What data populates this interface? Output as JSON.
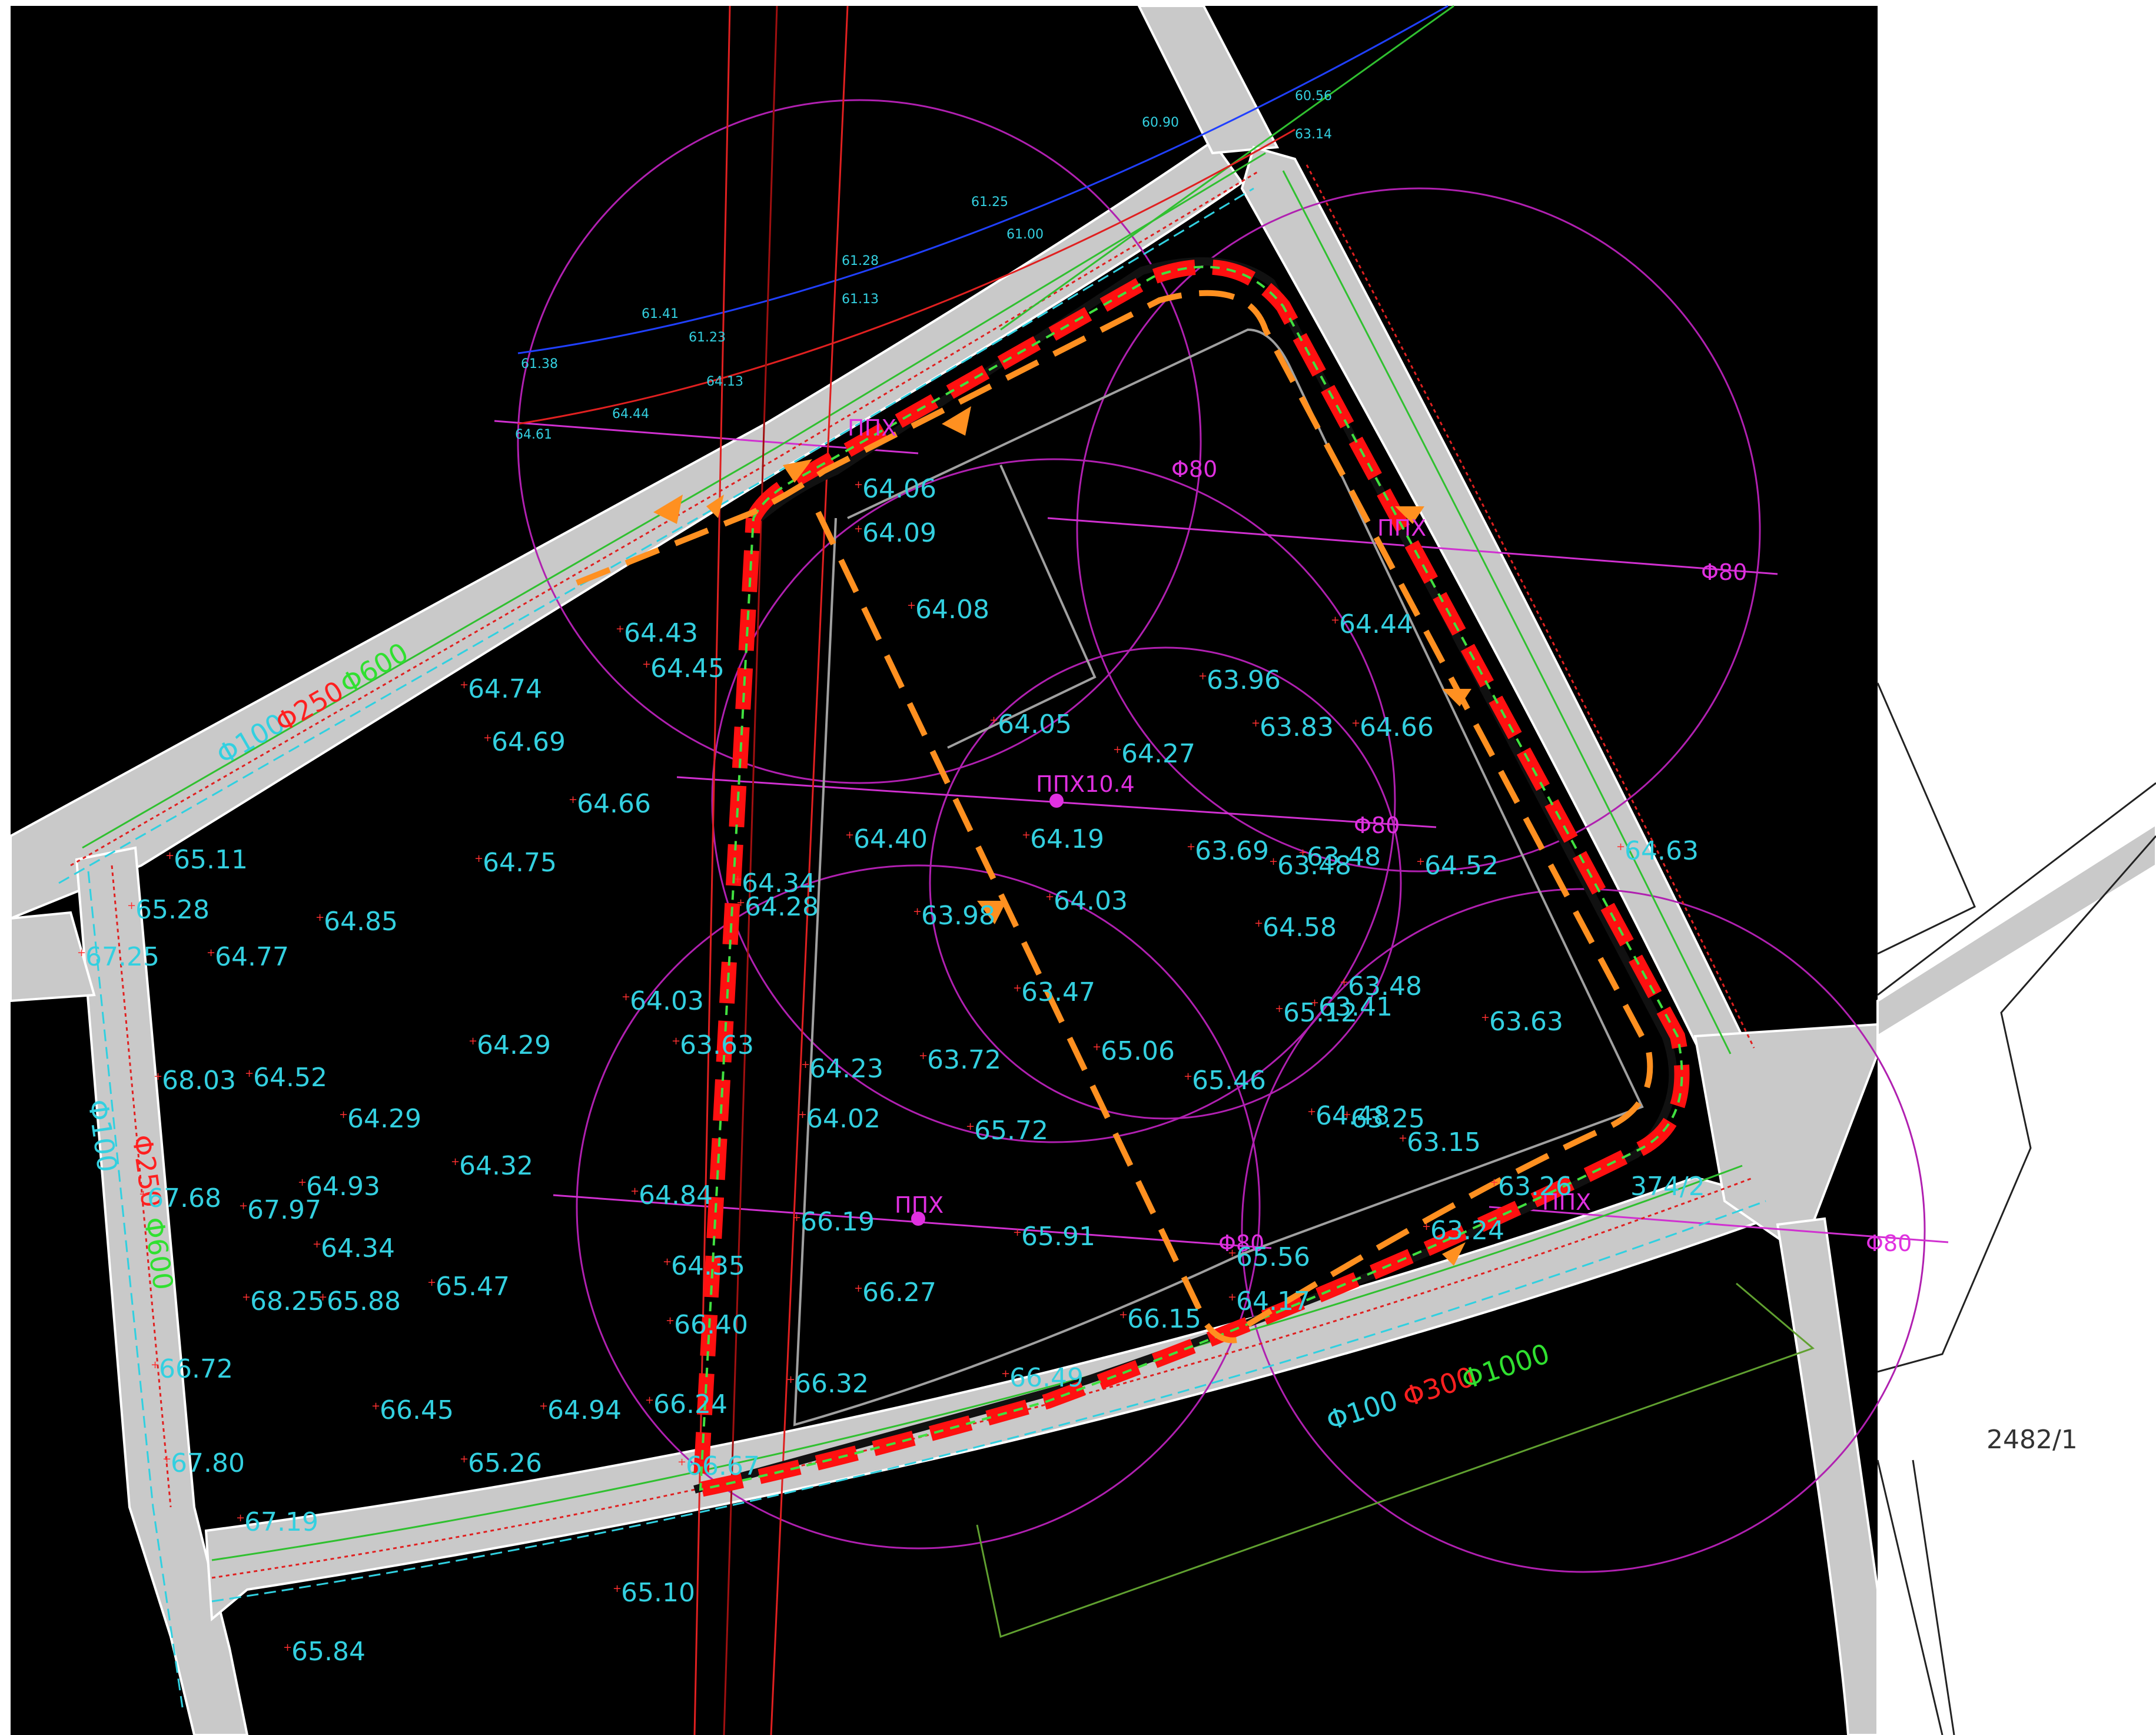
{
  "plan": {
    "parcel_labels": [
      "2482/1",
      "374/2"
    ],
    "pipe_labels": {
      "north_road": [
        "Φ100",
        "Φ250",
        "Φ600"
      ],
      "west_road": [
        "Φ100",
        "Φ250",
        "Φ600"
      ],
      "south_road": [
        "Φ100",
        "Φ300",
        "Φ1000"
      ]
    },
    "hydrants": {
      "symbol_label": "ППХ",
      "circle_radius_label": "Φ80",
      "center_label": "ППХ10.4"
    },
    "elevations": {
      "road_north": [
        "60.56",
        "60.90",
        "63.14",
        "61.25",
        "61.00",
        "61.28",
        "61.13",
        "61.41",
        "61.23",
        "61.38",
        "64.13",
        "64.44",
        "64.61"
      ],
      "site": [
        "64.06",
        "64.09",
        "64.08",
        "64.43",
        "64.45",
        "64.74",
        "64.69",
        "64.66",
        "64.75",
        "64.85",
        "65.11",
        "65.28",
        "64.77",
        "64.40",
        "64.19",
        "64.27",
        "64.05",
        "63.96",
        "63.83",
        "64.66",
        "64.44",
        "64.52",
        "64.58",
        "63.69",
        "63.48",
        "63.48",
        "64.34",
        "64.28",
        "63.98",
        "64.03",
        "63.47",
        "64.03",
        "63.63",
        "64.23",
        "63.72",
        "65.06",
        "65.12",
        "63.41",
        "63.48",
        "63.63",
        "65.46",
        "64.29",
        "64.52",
        "64.29",
        "68.03",
        "64.02",
        "65.72",
        "64.48",
        "63.25",
        "63.15",
        "64.32",
        "64.93",
        "67.97",
        "64.84",
        "66.19",
        "65.91",
        "65.56",
        "63.26",
        "63.24",
        "64.34",
        "65.47",
        "65.88",
        "68.25",
        "64.35",
        "66.27",
        "64.17",
        "66.15",
        "66.40",
        "66.32",
        "66.49",
        "64.94",
        "66.45",
        "66.24",
        "65.26",
        "66.67",
        "67.19",
        "65.10",
        "65.84",
        "64.63",
        "67.68",
        "66.72",
        "67.80",
        "67.25"
      ]
    }
  }
}
